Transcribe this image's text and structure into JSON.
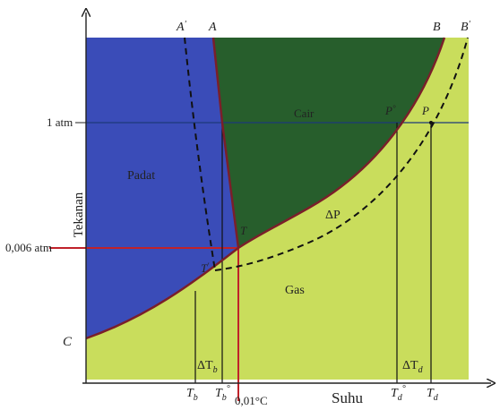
{
  "axes": {
    "x_label": "Suhu",
    "y_label": "Tekanan"
  },
  "pressure_ticks": {
    "one_atm": "1 atm",
    "triple_pressure": "0,006 atm"
  },
  "temperature_ticks": {
    "triple_temp": "0,01°C",
    "tb": "T",
    "tb_sub": "b",
    "tb_prime": "T",
    "tb_prime_sub": "b",
    "tb_prime_mark": "°",
    "td_prime": "T",
    "td_prime_sub": "d",
    "td_prime_mark": "°",
    "td": "T",
    "td_sub": "d"
  },
  "regions": {
    "solid": "Padat",
    "liquid": "Cair",
    "gas": "Gas"
  },
  "points": {
    "A": "A",
    "A_prime": "A",
    "A_prime_mark": "'",
    "B": "B",
    "B_prime": "B",
    "B_prime_mark": "'",
    "C": "C",
    "T": "T",
    "T_prime": "T",
    "T_prime_mark": "'",
    "P": "P",
    "P_prime": "P",
    "P_prime_mark": "°"
  },
  "deltas": {
    "delta_tb": "ΔT",
    "delta_tb_sub": "b",
    "delta_td": "ΔT",
    "delta_td_sub": "d",
    "delta_p": "ΔP"
  },
  "colors": {
    "solid": "#3a4cb8",
    "liquid": "#275e2c",
    "gas": "#c9dd5c",
    "boundary": "#7a1f2a",
    "guide_red": "#c0222a",
    "axis": "#222222"
  }
}
